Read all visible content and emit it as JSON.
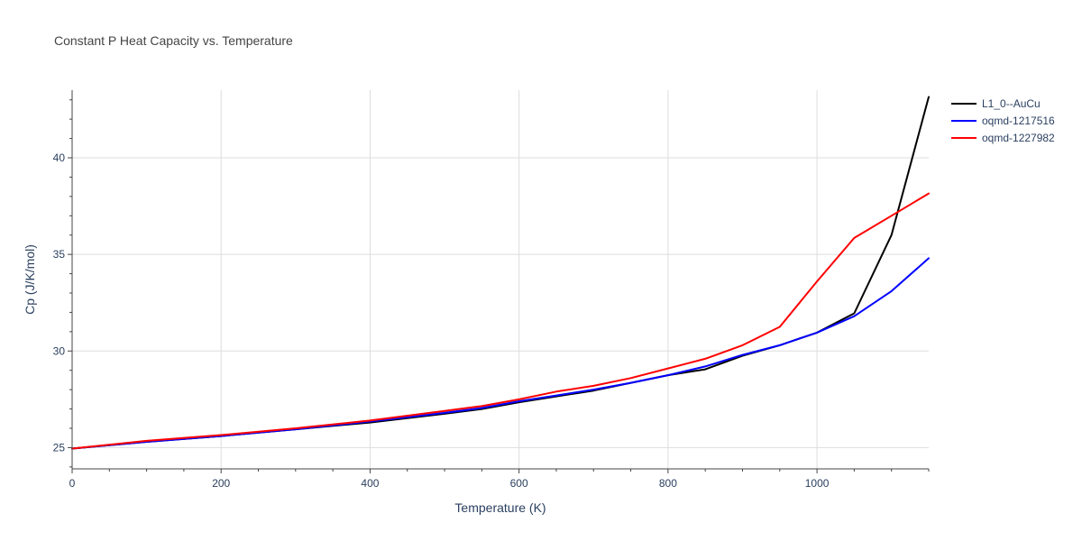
{
  "chart_data": {
    "type": "line",
    "title": "Constant P Heat Capacity vs. Temperature",
    "xlabel": "Temperature (K)",
    "ylabel": "Cp (J/K/mol)",
    "xlim": [
      0,
      1150
    ],
    "ylim": [
      23.9,
      43.5
    ],
    "xticks": [
      0,
      200,
      400,
      600,
      800,
      1000
    ],
    "yticks": [
      25,
      30,
      35,
      40
    ],
    "minor_xticks": [
      50,
      100,
      150,
      250,
      300,
      350,
      450,
      500,
      550,
      650,
      700,
      750,
      850,
      900,
      950,
      1050,
      1100,
      1150
    ],
    "minor_yticks": [
      24,
      26,
      27,
      28,
      29,
      31,
      32,
      33,
      34,
      36,
      37,
      38,
      39,
      41,
      42,
      43
    ],
    "grid": true,
    "legend_position": "top-right",
    "series": [
      {
        "name": "L1_0--AuCu",
        "color": "#000000",
        "x": [
          0,
          100,
          200,
          300,
          400,
          500,
          550,
          600,
          650,
          700,
          750,
          800,
          850,
          900,
          950,
          1000,
          1050,
          1100,
          1150
        ],
        "y": [
          24.95,
          25.3,
          25.6,
          25.95,
          26.3,
          26.75,
          27.0,
          27.35,
          27.65,
          27.95,
          28.35,
          28.75,
          29.05,
          29.75,
          30.3,
          30.95,
          31.95,
          36.0,
          43.15
        ]
      },
      {
        "name": "oqmd-1217516",
        "color": "#0000ff",
        "x": [
          0,
          100,
          200,
          300,
          400,
          500,
          550,
          600,
          650,
          700,
          750,
          800,
          850,
          900,
          950,
          1000,
          1050,
          1100,
          1150
        ],
        "y": [
          24.95,
          25.3,
          25.6,
          25.95,
          26.35,
          26.8,
          27.05,
          27.4,
          27.7,
          28.0,
          28.35,
          28.75,
          29.2,
          29.8,
          30.3,
          30.95,
          31.8,
          33.1,
          34.8
        ]
      },
      {
        "name": "oqmd-1227982",
        "color": "#ff0000",
        "x": [
          0,
          100,
          200,
          300,
          400,
          500,
          550,
          600,
          650,
          700,
          750,
          800,
          850,
          900,
          950,
          1000,
          1050,
          1100,
          1150
        ],
        "y": [
          24.95,
          25.35,
          25.65,
          26.0,
          26.4,
          26.9,
          27.15,
          27.5,
          27.9,
          28.2,
          28.6,
          29.1,
          29.6,
          30.3,
          31.25,
          33.6,
          35.85,
          37.0,
          38.15
        ]
      }
    ]
  }
}
